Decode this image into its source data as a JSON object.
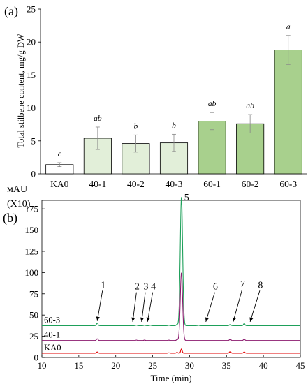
{
  "chart_data": [
    {
      "type": "bar",
      "panel_label": "(a)",
      "ylabel": "Total stilbene content, mg/g DW",
      "ylim": [
        0,
        25
      ],
      "yticks": [
        0,
        5,
        10,
        15,
        20,
        25
      ],
      "grid": false,
      "categories": [
        "KA0",
        "40-1",
        "40-2",
        "40-3",
        "60-1",
        "60-2",
        "60-3"
      ],
      "values": [
        1.4,
        5.4,
        4.6,
        4.7,
        8.0,
        7.6,
        18.8
      ],
      "errors": [
        0.3,
        1.7,
        1.3,
        1.3,
        1.3,
        1.4,
        2.2
      ],
      "significance": [
        "c",
        "ab",
        "b",
        "b",
        "ab",
        "ab",
        "a"
      ],
      "colors": [
        "#ffffff",
        "#e2efd9",
        "#e2efd9",
        "#e2efd9",
        "#a8d08d",
        "#a8d08d",
        "#a8d08d"
      ]
    },
    {
      "type": "line",
      "panel_label": "(b)",
      "ylabel_line1": "мAU",
      "ylabel_line2": "(X10)",
      "xlabel": "Time (min)",
      "xlim": [
        10,
        45
      ],
      "xticks": [
        10,
        15,
        20,
        25,
        30,
        35,
        40,
        45
      ],
      "ylim": [
        0,
        185
      ],
      "yticks": [
        0,
        25,
        50,
        75,
        100,
        125,
        150,
        175
      ],
      "series": [
        {
          "name": "60-3",
          "color": "#1ea05a",
          "baseline": 37.5,
          "peaks": [
            [
              17.5,
              3
            ],
            [
              22.8,
              0.6
            ],
            [
              23.9,
              0.6
            ],
            [
              24.7,
              0.5
            ],
            [
              27.2,
              0.5
            ],
            [
              28.3,
              1.5
            ],
            [
              28.9,
              152
            ],
            [
              31.2,
              0.5
            ],
            [
              35.5,
              1.5
            ],
            [
              37.4,
              2.5
            ]
          ]
        },
        {
          "name": "40-1",
          "color": "#8b1a6e",
          "baseline": 20,
          "peaks": [
            [
              17.5,
              2
            ],
            [
              22.8,
              0.5
            ],
            [
              23.9,
              0.5
            ],
            [
              27.2,
              0.4
            ],
            [
              28.3,
              1
            ],
            [
              28.9,
              80
            ],
            [
              35.5,
              1.5
            ],
            [
              37.4,
              1.5
            ]
          ]
        },
        {
          "name": "KA0",
          "color": "#e00000",
          "baseline": 5,
          "peaks": [
            [
              17.5,
              1.5
            ],
            [
              27.2,
              0.5
            ],
            [
              28.3,
              1
            ],
            [
              28.9,
              5
            ],
            [
              35.5,
              2
            ],
            [
              37.4,
              1.5
            ]
          ]
        }
      ],
      "annotations": [
        {
          "label": "1",
          "from": [
            18.3,
            82
          ],
          "to": [
            17.5,
            43
          ]
        },
        {
          "label": "2",
          "from": [
            22.9,
            80
          ],
          "to": [
            22.3,
            42
          ]
        },
        {
          "label": "3",
          "from": [
            24.1,
            80
          ],
          "to": [
            23.5,
            42
          ]
        },
        {
          "label": "4",
          "from": [
            25.1,
            80
          ],
          "to": [
            24.3,
            42
          ]
        },
        {
          "label": "5",
          "from": [
            29.6,
            185
          ],
          "to": null
        },
        {
          "label": "6",
          "from": [
            33.5,
            80
          ],
          "to": [
            32.2,
            42
          ]
        },
        {
          "label": "7",
          "from": [
            37.2,
            83
          ],
          "to": [
            35.9,
            42
          ]
        },
        {
          "label": "8",
          "from": [
            39.6,
            82
          ],
          "to": [
            38.2,
            42
          ]
        }
      ]
    }
  ]
}
